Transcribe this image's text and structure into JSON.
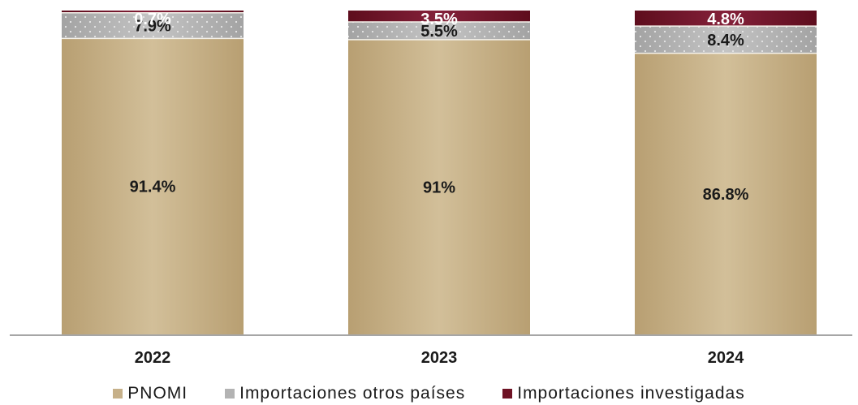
{
  "chart_data": {
    "type": "bar",
    "stacked": true,
    "categories": [
      "2022",
      "2023",
      "2024"
    ],
    "ylim": [
      0,
      100
    ],
    "grid": false,
    "legend_position": "bottom",
    "series": [
      {
        "name": "PNOMI",
        "color": "#c6b089",
        "values": [
          91.4,
          91,
          86.8
        ],
        "labels": [
          "91.4%",
          "91%",
          "86.8%"
        ],
        "label_color": "#1a1a1a"
      },
      {
        "name": "Importaciones otros países",
        "color": "#b3b3b3",
        "values": [
          7.9,
          5.5,
          8.4
        ],
        "labels": [
          "7.9%",
          "5.5%",
          "8.4%"
        ],
        "label_color": "#1a1a1a"
      },
      {
        "name": "Importaciones investigadas",
        "color": "#6e1224",
        "values": [
          0.7,
          3.5,
          4.8
        ],
        "labels": [
          "0.7%",
          "3.5%",
          "4.8%"
        ],
        "label_color": "#ffffff"
      }
    ]
  }
}
